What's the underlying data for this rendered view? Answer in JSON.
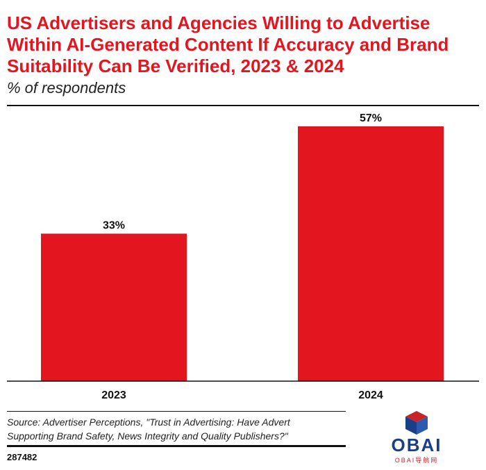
{
  "header": {
    "title": "US Advertisers and Agencies Willing to Advertise Within AI-Generated Content If Accuracy and Brand Suitability Can Be Verified, 2023 & 2024",
    "subtitle": "% of respondents"
  },
  "footer": {
    "source": "Source: Advertiser Perceptions, \"Trust in Advertising: Have Advert Supporting Brand Safety, News Integrity and Quality Publishers?\"",
    "source_line1": "Source: Advertiser Perceptions, \"Trust in Advertising: Have Advert",
    "source_line2": "Supporting Brand Safety, News Integrity and Quality Publishers?\"",
    "chart_id": "287482"
  },
  "watermark": {
    "logo_text": "OBAI",
    "logo_sub": "OBAI导航网",
    "colors": {
      "blue": "#1b3f86",
      "red": "#c9232a"
    }
  },
  "chart_data": {
    "type": "bar",
    "title": "US Advertisers and Agencies Willing to Advertise Within AI-Generated Content If Accuracy and Brand Suitability Can Be Verified, 2023 & 2024",
    "subtitle": "% of respondents",
    "categories": [
      "2023",
      "2024"
    ],
    "values": [
      33,
      57
    ],
    "value_labels": [
      "33%",
      "57%"
    ],
    "ylim": [
      0,
      57
    ],
    "grid": false,
    "bar_color": "#e3151f"
  }
}
